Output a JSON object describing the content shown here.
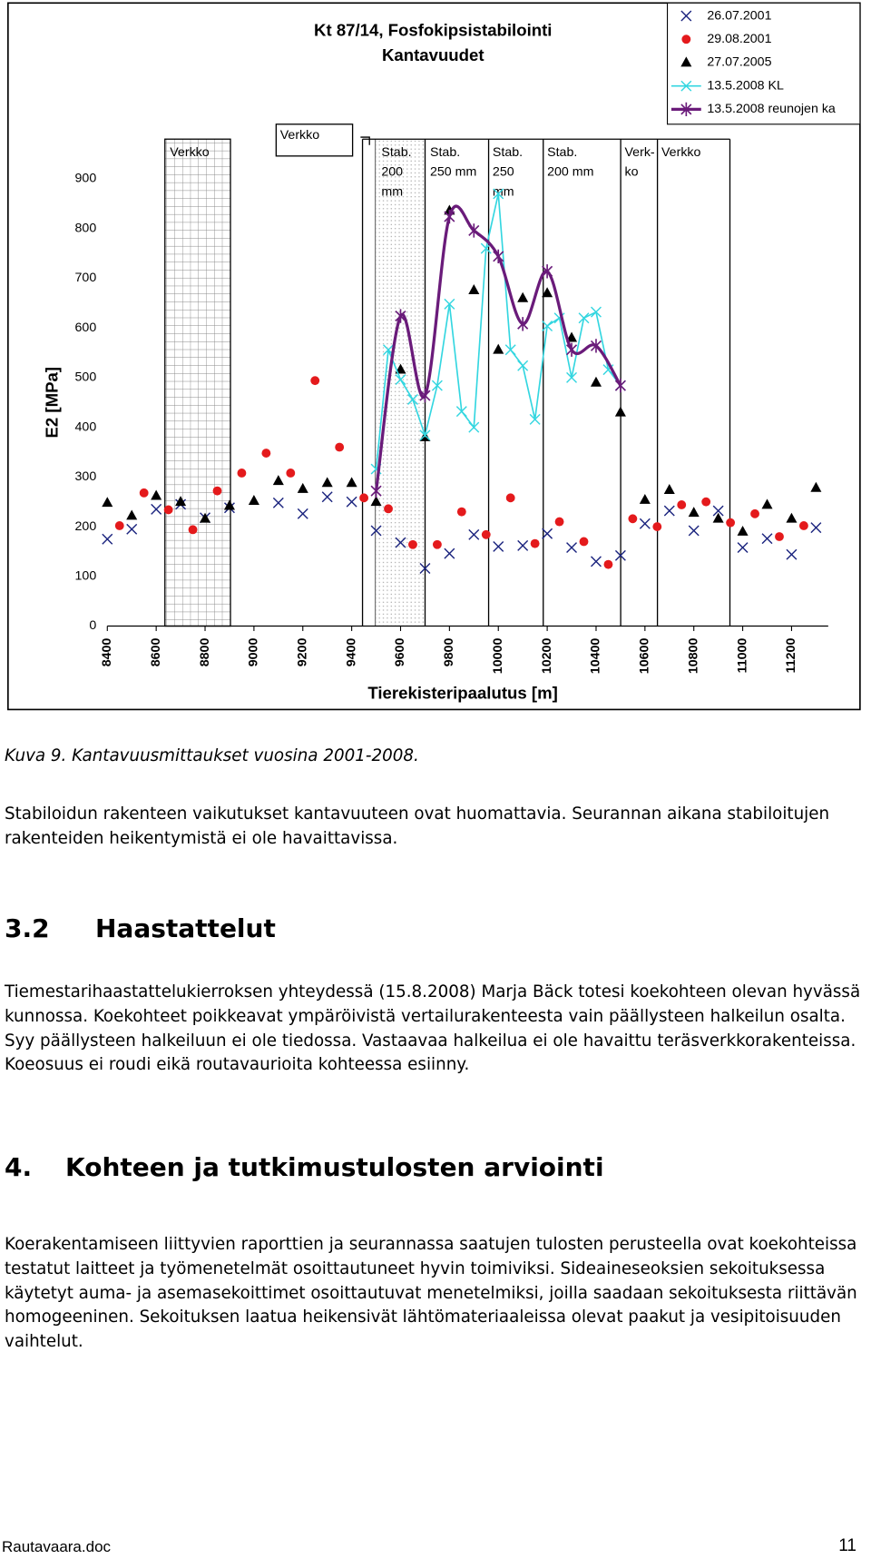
{
  "chart_data": {
    "type": "scatter",
    "title": [
      "Kt 87/14, Fosfokipsistabilointi",
      "Kantavuudet"
    ],
    "x_label": "Tierekisteripaalutus [m]",
    "y_label": "E2 [MPa]",
    "xlim": [
      8400,
      11350
    ],
    "ylim": [
      0,
      1000
    ],
    "xticks": [
      8400,
      8600,
      8800,
      9000,
      9200,
      9400,
      9600,
      9800,
      10000,
      10200,
      10400,
      10600,
      10800,
      11000,
      11200
    ],
    "yticks": [
      0,
      100,
      200,
      300,
      400,
      500,
      600,
      700,
      800,
      900
    ],
    "grid": false,
    "legend": "upper right",
    "annotations": [
      [
        "Verkko"
      ],
      [
        "Verkko"
      ],
      [
        "Stab.",
        "200",
        "mm"
      ],
      [
        "Stab.",
        "250 mm"
      ],
      [
        "Stab.",
        "250",
        "mm"
      ],
      [
        "Stab.",
        "200 mm"
      ],
      [
        "Verk-",
        "ko"
      ],
      [
        "Verkko"
      ]
    ],
    "series": [
      {
        "name": "26.07.2001",
        "color": "#1a237e",
        "marker": "x",
        "line": false,
        "x": [
          8400,
          8500,
          8600,
          8700,
          8800,
          8900,
          9100,
          9200,
          9300,
          9400,
          9500,
          9600,
          9700,
          9800,
          9900,
          10000,
          10100,
          10200,
          10300,
          10400,
          10500,
          10600,
          10700,
          10800,
          10900,
          11000,
          11100,
          11200,
          11300
        ],
        "values": [
          175,
          195,
          235,
          245,
          218,
          238,
          248,
          226,
          260,
          250,
          192,
          168,
          116,
          146,
          184,
          160,
          162,
          186,
          158,
          130,
          142,
          206,
          232,
          192,
          232,
          158,
          176,
          144,
          198
        ]
      },
      {
        "name": "29.08.2001",
        "color": "#e41a1c",
        "marker": "circle",
        "line": false,
        "x": [
          8450,
          8550,
          8650,
          8750,
          8850,
          8950,
          9050,
          9150,
          9250,
          9350,
          9450,
          9550,
          9650,
          9750,
          9850,
          9950,
          10050,
          10150,
          10250,
          10350,
          10450,
          10550,
          10650,
          10750,
          10850,
          10950,
          11050,
          11150,
          11250
        ],
        "values": [
          202,
          268,
          234,
          194,
          272,
          308,
          348,
          308,
          494,
          360,
          258,
          236,
          164,
          164,
          230,
          184,
          258,
          166,
          210,
          170,
          124,
          216,
          200,
          244,
          250,
          208,
          226,
          180,
          202
        ]
      },
      {
        "name": "27.07.2005",
        "color": "#000000",
        "marker": "triangle",
        "line": false,
        "x": [
          8400,
          8500,
          8600,
          8700,
          8800,
          8900,
          9000,
          9100,
          9200,
          9300,
          9400,
          9500,
          9600,
          9700,
          9800,
          9900,
          10000,
          10100,
          10200,
          10300,
          10400,
          10500,
          10600,
          10700,
          10800,
          10900,
          11000,
          11100,
          11200,
          11300
        ],
        "values": [
          248,
          222,
          262,
          250,
          216,
          242,
          252,
          292,
          276,
          288,
          288,
          250,
          516,
          380,
          836,
          676,
          556,
          660,
          670,
          580,
          490,
          430,
          254,
          274,
          228,
          216,
          190,
          244,
          216,
          278
        ]
      },
      {
        "name": "13.5.2008 KL",
        "color": "#33d6e0",
        "marker": "x",
        "line": true,
        "smooth": false,
        "x": [
          9500,
          9550,
          9600,
          9650,
          9700,
          9750,
          9800,
          9850,
          9900,
          9950,
          10000,
          10050,
          10100,
          10150,
          10200,
          10250,
          10300,
          10350,
          10400,
          10450,
          10500
        ],
        "values": [
          316,
          556,
          496,
          456,
          384,
          484,
          648,
          432,
          400,
          760,
          870,
          556,
          524,
          416,
          604,
          620,
          500,
          620,
          632,
          516,
          484
        ]
      },
      {
        "name": "13.5.2008 reunojen ka",
        "color": "#6a1b7a",
        "marker": "star",
        "line": true,
        "smooth": true,
        "x": [
          9500,
          9600,
          9700,
          9800,
          9900,
          10000,
          10100,
          10200,
          10300,
          10400,
          10500
        ],
        "values": [
          272,
          624,
          464,
          824,
          796,
          744,
          608,
          714,
          556,
          564,
          484
        ]
      }
    ]
  },
  "document": {
    "caption": "Kuva 9. Kantavuusmittaukset vuosina 2001-2008.",
    "paragraph": "Stabiloidun rakenteen vaikutukset kantavuuteen ovat huomattavia. Seurannan aikana stabiloitujen rakenteiden heikentymistä ei ole havaittavissa.",
    "sections": [
      {
        "number": "3.2",
        "title": "Haastattelut",
        "text": "Tiemestarihaastattelukierroksen yhteydessä (15.8.2008) Marja Bäck totesi koekohteen olevan hyvässä kunnossa. Koekohteet poikkeavat ympäröivistä vertailurakenteesta vain päällysteen halkeilun osalta. Syy päällysteen halkeiluun ei ole tiedossa. Vastaavaa halkeilua ei ole havaittu teräsverkkorakenteissa. Koeosuus ei roudi eikä routavaurioita kohteessa esiinny."
      },
      {
        "number": "4.",
        "title": "Kohteen ja tutkimustulosten arviointi",
        "text": "Koerakentamiseen liittyvien raporttien ja seurannassa saatujen tulosten perusteella ovat koekohteissa testatut laitteet ja työmenetelmät osoittautuneet hyvin toimiviksi. Sideaineseoksien sekoituksessa käytetyt auma- ja asemasekoittimet osoittautuvat menetelmiksi, joilla saadaan sekoituksesta riittävän homogeeninen. Sekoituksen laa­tua heikensivät lähtömateriaaleissa olevat paakut ja vesipitoisuuden vaihtelut."
      }
    ],
    "footer": {
      "file": "Rautavaara.doc",
      "page": "11"
    }
  }
}
